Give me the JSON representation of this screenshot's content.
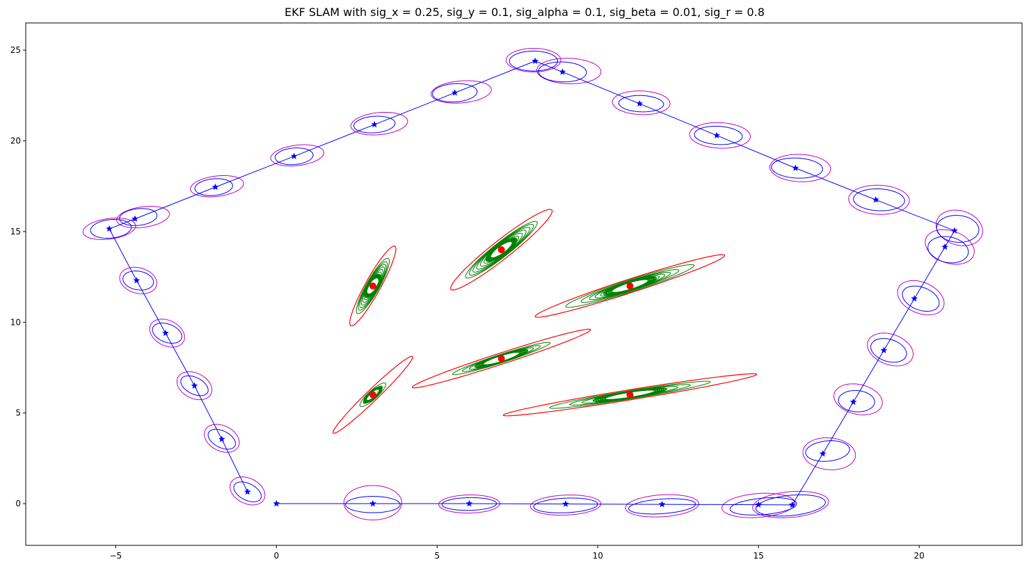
{
  "chart_data": {
    "type": "scatter",
    "title": "EKF SLAM with sig_x = 0.25, sig_y = 0.1, sig_alpha = 0.1, sig_beta = 0.01, sig_r = 0.8",
    "xlabel": "",
    "ylabel": "",
    "xlim": [
      -7.8,
      23.2
    ],
    "ylim": [
      -2.3,
      26.5
    ],
    "grid": false,
    "legend": "none",
    "x_ticks": [
      -5,
      0,
      5,
      10,
      15,
      20
    ],
    "y_ticks": [
      0,
      5,
      10,
      15,
      20,
      25
    ],
    "colors": {
      "trajectory": "#0000ff",
      "pose_covariance": "#0000ff",
      "predicted_covariance": "#bf00bf",
      "landmark_initial": "#ff0000",
      "landmark_updates": "#008000",
      "landmark_final": "#ffffff",
      "landmark_truth": "#ff0000"
    },
    "trajectory": [
      [
        0,
        0
      ],
      [
        3,
        0
      ],
      [
        6,
        0
      ],
      [
        9,
        -0.02
      ],
      [
        12,
        -0.04
      ],
      [
        15,
        -0.06
      ],
      [
        16.05,
        -0.07
      ],
      [
        17,
        2.75
      ],
      [
        17.95,
        5.6
      ],
      [
        18.9,
        8.45
      ],
      [
        19.85,
        11.3
      ],
      [
        20.8,
        14.15
      ],
      [
        21.1,
        15.05
      ],
      [
        18.65,
        16.75
      ],
      [
        16.15,
        18.5
      ],
      [
        13.7,
        20.3
      ],
      [
        11.3,
        22.05
      ],
      [
        8.9,
        23.8
      ],
      [
        8.05,
        24.4
      ],
      [
        5.55,
        22.65
      ],
      [
        3.05,
        20.9
      ],
      [
        0.55,
        19.15
      ],
      [
        -1.9,
        17.45
      ],
      [
        -4.4,
        15.7
      ],
      [
        -5.2,
        15.15
      ],
      [
        -4.35,
        12.3
      ],
      [
        -3.45,
        9.4
      ],
      [
        -2.55,
        6.5
      ],
      [
        -1.7,
        3.55
      ],
      [
        -0.9,
        0.65
      ]
    ],
    "pose_ellipses": [
      {
        "cx": 3.0,
        "cy": -0.05,
        "rx": 0.85,
        "ry": 0.45,
        "angle": 0
      },
      {
        "cx": 6.0,
        "cy": -0.02,
        "rx": 0.85,
        "ry": 0.35,
        "angle": 2
      },
      {
        "cx": 9.0,
        "cy": -0.1,
        "rx": 1.0,
        "ry": 0.4,
        "angle": 5
      },
      {
        "cx": 12.0,
        "cy": -0.15,
        "rx": 1.05,
        "ry": 0.4,
        "angle": 8
      },
      {
        "cx": 15.15,
        "cy": -0.15,
        "rx": 1.05,
        "ry": 0.45,
        "angle": 10
      },
      {
        "cx": 16.0,
        "cy": -0.1,
        "rx": 1.1,
        "ry": 0.55,
        "angle": 12
      },
      {
        "cx": 17.15,
        "cy": 2.9,
        "rx": 0.7,
        "ry": 0.55,
        "angle": 20
      },
      {
        "cx": 18.05,
        "cy": 5.65,
        "rx": 0.55,
        "ry": 0.6,
        "angle": 30
      },
      {
        "cx": 19.05,
        "cy": 8.45,
        "rx": 0.5,
        "ry": 0.7,
        "angle": 30
      },
      {
        "cx": 20.05,
        "cy": 11.3,
        "rx": 0.5,
        "ry": 0.75,
        "angle": 30
      },
      {
        "cx": 20.9,
        "cy": 14.0,
        "rx": 0.6,
        "ry": 0.75,
        "angle": 25
      },
      {
        "cx": 21.2,
        "cy": 15.15,
        "rx": 0.65,
        "ry": 0.75,
        "angle": 15
      },
      {
        "cx": 18.75,
        "cy": 16.75,
        "rx": 0.8,
        "ry": 0.6,
        "angle": -8
      },
      {
        "cx": 16.2,
        "cy": 18.5,
        "rx": 0.8,
        "ry": 0.55,
        "angle": -8
      },
      {
        "cx": 13.75,
        "cy": 20.3,
        "rx": 0.75,
        "ry": 0.5,
        "angle": -8
      },
      {
        "cx": 11.35,
        "cy": 22.05,
        "rx": 0.7,
        "ry": 0.45,
        "angle": -5
      },
      {
        "cx": 8.9,
        "cy": 23.8,
        "rx": 0.75,
        "ry": 0.55,
        "angle": -5
      },
      {
        "cx": 8.0,
        "cy": 24.4,
        "rx": 0.75,
        "ry": 0.55,
        "angle": 0
      },
      {
        "cx": 5.55,
        "cy": 22.65,
        "rx": 0.7,
        "ry": 0.5,
        "angle": 10
      },
      {
        "cx": 3.05,
        "cy": 20.9,
        "rx": 0.65,
        "ry": 0.45,
        "angle": 12
      },
      {
        "cx": 0.55,
        "cy": 19.15,
        "rx": 0.6,
        "ry": 0.45,
        "angle": 15
      },
      {
        "cx": -1.95,
        "cy": 17.45,
        "rx": 0.6,
        "ry": 0.45,
        "angle": 18
      },
      {
        "cx": -4.3,
        "cy": 15.8,
        "rx": 0.6,
        "ry": 0.45,
        "angle": 20
      },
      {
        "cx": -5.15,
        "cy": 15.15,
        "rx": 0.65,
        "ry": 0.5,
        "angle": 20
      },
      {
        "cx": -4.3,
        "cy": 12.3,
        "rx": 0.45,
        "ry": 0.55,
        "angle": 30
      },
      {
        "cx": -3.4,
        "cy": 9.4,
        "rx": 0.4,
        "ry": 0.6,
        "angle": 30
      },
      {
        "cx": -2.55,
        "cy": 6.5,
        "rx": 0.35,
        "ry": 0.6,
        "angle": 30
      },
      {
        "cx": -1.7,
        "cy": 3.55,
        "rx": 0.35,
        "ry": 0.6,
        "angle": 30
      },
      {
        "cx": -0.9,
        "cy": 0.65,
        "rx": 0.35,
        "ry": 0.6,
        "angle": 30
      }
    ],
    "predicted_ellipses": [
      {
        "cx": 3.0,
        "cy": 0.05,
        "rx": 0.9,
        "ry": 0.95,
        "angle": 0
      },
      {
        "cx": 6.0,
        "cy": -0.02,
        "rx": 0.95,
        "ry": 0.5,
        "angle": 2
      },
      {
        "cx": 9.0,
        "cy": -0.08,
        "rx": 1.1,
        "ry": 0.55,
        "angle": 5
      },
      {
        "cx": 12.0,
        "cy": -0.12,
        "rx": 1.15,
        "ry": 0.6,
        "angle": 8
      },
      {
        "cx": 15.0,
        "cy": -0.1,
        "rx": 1.15,
        "ry": 0.65,
        "angle": 10
      },
      {
        "cx": 16.0,
        "cy": -0.05,
        "rx": 1.2,
        "ry": 0.7,
        "angle": 12
      },
      {
        "cx": 17.2,
        "cy": 2.75,
        "rx": 0.8,
        "ry": 0.9,
        "angle": 25
      },
      {
        "cx": 18.1,
        "cy": 5.75,
        "rx": 0.7,
        "ry": 0.9,
        "angle": 30
      },
      {
        "cx": 19.1,
        "cy": 8.5,
        "rx": 0.65,
        "ry": 0.95,
        "angle": 25
      },
      {
        "cx": 20.05,
        "cy": 11.35,
        "rx": 0.65,
        "ry": 1.0,
        "angle": 25
      },
      {
        "cx": 20.95,
        "cy": 14.15,
        "rx": 0.7,
        "ry": 1.0,
        "angle": 25
      },
      {
        "cx": 21.25,
        "cy": 15.2,
        "rx": 0.7,
        "ry": 1.0,
        "angle": 15
      },
      {
        "cx": 18.75,
        "cy": 16.75,
        "rx": 0.95,
        "ry": 0.8,
        "angle": -10
      },
      {
        "cx": 16.3,
        "cy": 18.5,
        "rx": 0.95,
        "ry": 0.75,
        "angle": -8
      },
      {
        "cx": 13.8,
        "cy": 20.3,
        "rx": 0.95,
        "ry": 0.7,
        "angle": -8
      },
      {
        "cx": 11.35,
        "cy": 22.1,
        "rx": 0.9,
        "ry": 0.65,
        "angle": -6
      },
      {
        "cx": 9.1,
        "cy": 23.85,
        "rx": 1.0,
        "ry": 0.7,
        "angle": -5
      },
      {
        "cx": 8.0,
        "cy": 24.45,
        "rx": 0.85,
        "ry": 0.65,
        "angle": 0
      },
      {
        "cx": 5.75,
        "cy": 22.7,
        "rx": 0.95,
        "ry": 0.6,
        "angle": 12
      },
      {
        "cx": 3.2,
        "cy": 20.95,
        "rx": 0.9,
        "ry": 0.6,
        "angle": 15
      },
      {
        "cx": 0.65,
        "cy": 19.2,
        "rx": 0.85,
        "ry": 0.55,
        "angle": 18
      },
      {
        "cx": -1.85,
        "cy": 17.5,
        "rx": 0.85,
        "ry": 0.55,
        "angle": 18
      },
      {
        "cx": -4.15,
        "cy": 15.8,
        "rx": 0.85,
        "ry": 0.55,
        "angle": 20
      },
      {
        "cx": -5.2,
        "cy": 15.15,
        "rx": 0.85,
        "ry": 0.55,
        "angle": 20
      },
      {
        "cx": -4.3,
        "cy": 12.3,
        "rx": 0.55,
        "ry": 0.75,
        "angle": 20
      },
      {
        "cx": -3.4,
        "cy": 9.4,
        "rx": 0.5,
        "ry": 0.8,
        "angle": 20
      },
      {
        "cx": -2.55,
        "cy": 6.5,
        "rx": 0.5,
        "ry": 0.8,
        "angle": 20
      },
      {
        "cx": -1.7,
        "cy": 3.6,
        "rx": 0.5,
        "ry": 0.8,
        "angle": 20
      },
      {
        "cx": -0.9,
        "cy": 0.7,
        "rx": 0.5,
        "ry": 0.8,
        "angle": 20
      }
    ],
    "landmarks": [
      {
        "x": 3,
        "y": 6,
        "initial": {
          "rx": 2.45,
          "ry": 0.22,
          "angle": 60
        },
        "updates": [
          {
            "rx": 0.75,
            "ry": 0.17,
            "angle": 60
          },
          {
            "rx": 0.55,
            "ry": 0.13,
            "angle": 60
          },
          {
            "rx": 0.45,
            "ry": 0.11,
            "angle": 60
          },
          {
            "rx": 0.38,
            "ry": 0.09,
            "angle": 60
          }
        ],
        "final": {
          "rx": 0.28,
          "ry": 0.07,
          "angle": 60
        }
      },
      {
        "x": 3,
        "y": 12,
        "initial": {
          "rx": 2.3,
          "ry": 0.26,
          "angle": 73
        },
        "updates": [
          {
            "rx": 1.6,
            "ry": 0.22,
            "angle": 73
          },
          {
            "rx": 1.4,
            "ry": 0.2,
            "angle": 73
          },
          {
            "rx": 1.25,
            "ry": 0.19,
            "angle": 73
          },
          {
            "rx": 1.1,
            "ry": 0.17,
            "angle": 73
          },
          {
            "rx": 0.95,
            "ry": 0.15,
            "angle": 73
          },
          {
            "rx": 0.8,
            "ry": 0.13,
            "angle": 73
          },
          {
            "rx": 0.65,
            "ry": 0.12,
            "angle": 73
          }
        ],
        "final": {
          "rx": 0.38,
          "ry": 0.09,
          "angle": 73
        }
      },
      {
        "x": 7,
        "y": 14,
        "initial": {
          "rx": 2.7,
          "ry": 0.38,
          "angle": 55
        },
        "updates": [
          {
            "rx": 1.9,
            "ry": 0.3,
            "angle": 55
          },
          {
            "rx": 1.7,
            "ry": 0.28,
            "angle": 55
          },
          {
            "rx": 1.5,
            "ry": 0.26,
            "angle": 55
          },
          {
            "rx": 1.3,
            "ry": 0.24,
            "angle": 55
          },
          {
            "rx": 1.1,
            "ry": 0.22,
            "angle": 55
          },
          {
            "rx": 0.9,
            "ry": 0.19,
            "angle": 55
          },
          {
            "rx": 0.7,
            "ry": 0.16,
            "angle": 55
          }
        ],
        "final": {
          "rx": 0.45,
          "ry": 0.11,
          "angle": 55
        }
      },
      {
        "x": 7,
        "y": 8,
        "initial": {
          "rx": 3.2,
          "ry": 0.28,
          "angle": 30
        },
        "updates": [
          {
            "rx": 1.75,
            "ry": 0.21,
            "angle": 30
          },
          {
            "rx": 1.4,
            "ry": 0.18,
            "angle": 30
          },
          {
            "rx": 1.15,
            "ry": 0.16,
            "angle": 30
          },
          {
            "rx": 0.95,
            "ry": 0.14,
            "angle": 30
          }
        ],
        "final": {
          "rx": 0.55,
          "ry": 0.1,
          "angle": 30
        }
      },
      {
        "x": 11,
        "y": 12,
        "initial": {
          "rx": 3.4,
          "ry": 0.34,
          "angle": 30
        },
        "updates": [
          {
            "rx": 2.3,
            "ry": 0.3,
            "angle": 30
          },
          {
            "rx": 1.75,
            "ry": 0.26,
            "angle": 30
          },
          {
            "rx": 1.45,
            "ry": 0.24,
            "angle": 30
          },
          {
            "rx": 1.25,
            "ry": 0.22,
            "angle": 30
          },
          {
            "rx": 1.05,
            "ry": 0.2,
            "angle": 30
          },
          {
            "rx": 0.85,
            "ry": 0.18,
            "angle": 30
          }
        ],
        "final": {
          "rx": 0.55,
          "ry": 0.12,
          "angle": 30
        }
      },
      {
        "x": 11,
        "y": 6,
        "initial": {
          "rx": 4.1,
          "ry": 0.27,
          "angle": 16
        },
        "updates": [
          {
            "rx": 2.6,
            "ry": 0.22,
            "angle": 16
          },
          {
            "rx": 1.95,
            "ry": 0.19,
            "angle": 16
          },
          {
            "rx": 1.55,
            "ry": 0.17,
            "angle": 16
          },
          {
            "rx": 1.2,
            "ry": 0.15,
            "angle": 16
          },
          {
            "rx": 0.95,
            "ry": 0.13,
            "angle": 16
          }
        ],
        "final": {
          "rx": 0.7,
          "ry": 0.09,
          "angle": 16
        }
      }
    ]
  }
}
